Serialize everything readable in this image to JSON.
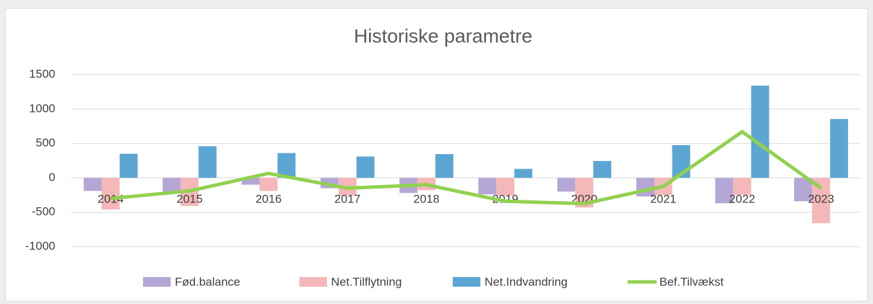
{
  "chart_data": {
    "type": "bar-line",
    "title": "Historiske parametre",
    "categories": [
      "2014",
      "2015",
      "2016",
      "2017",
      "2018",
      "2019",
      "2020",
      "2021",
      "2022",
      "2023"
    ],
    "series": [
      {
        "name": "Fød.balance",
        "type": "bar",
        "color": "#b4a7d6",
        "values": [
          -190,
          -210,
          -100,
          -150,
          -220,
          -240,
          -200,
          -270,
          -370,
          -340
        ]
      },
      {
        "name": "Net.Tilflytning",
        "type": "bar",
        "color": "#f4b8b8",
        "values": [
          -460,
          -410,
          -190,
          -260,
          -180,
          -260,
          -430,
          -250,
          -250,
          -660
        ]
      },
      {
        "name": "Net.Indvandring",
        "type": "bar",
        "color": "#5ba6d2",
        "values": [
          350,
          460,
          360,
          310,
          345,
          130,
          245,
          475,
          1340,
          855
        ]
      },
      {
        "name": "Bef.Tilvækst",
        "type": "line",
        "color": "#92d050",
        "values": [
          -300,
          -190,
          65,
          -150,
          -100,
          -340,
          -375,
          -125,
          670,
          -150
        ]
      }
    ],
    "ylim": [
      -1000,
      1500
    ],
    "yticks": [
      -1000,
      -500,
      0,
      500,
      1000,
      1500
    ],
    "grid": true,
    "legend": "bottom"
  }
}
